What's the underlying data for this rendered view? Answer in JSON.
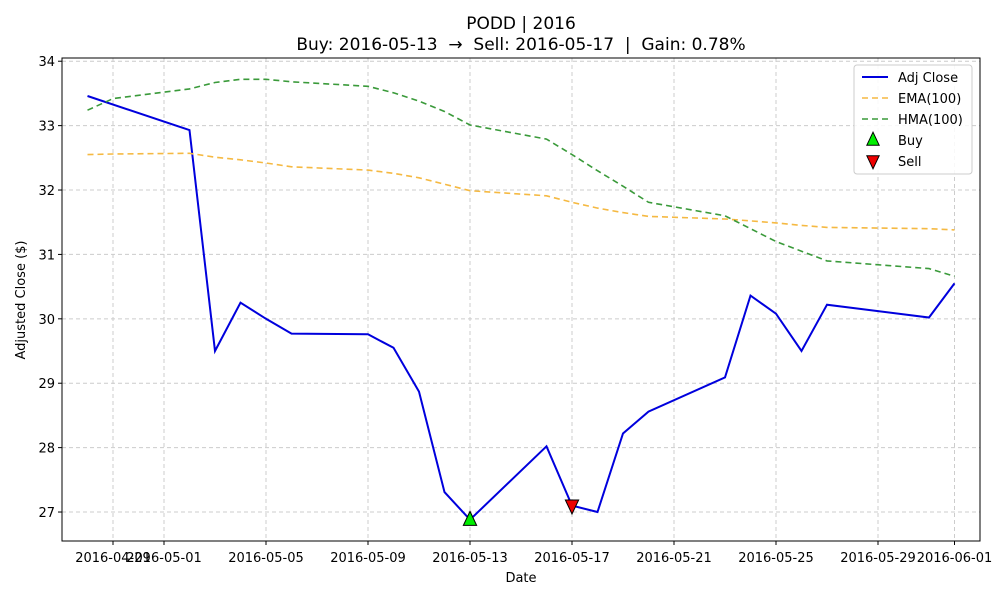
{
  "chart_data": {
    "type": "line",
    "title": "PODD | 2016",
    "subtitle": "Buy: 2016-05-13  →  Sell: 2016-05-17  |  Gain: 0.78%",
    "xlabel": "Date",
    "ylabel": "Adjusted Close ($)",
    "xlim": [
      "2016-04-27",
      "2016-06-02"
    ],
    "ylim": [
      26.55,
      34.05
    ],
    "grid": true,
    "legend_position": "top-right",
    "x_ticks": [
      "2016-04-29",
      "2016-05-01",
      "2016-05-05",
      "2016-05-09",
      "2016-05-13",
      "2016-05-17",
      "2016-05-21",
      "2016-05-25",
      "2016-05-29",
      "2016-06-01"
    ],
    "y_ticks": [
      27,
      28,
      29,
      30,
      31,
      32,
      33,
      34
    ],
    "series": [
      {
        "name": "Adj Close",
        "color": "#0000dd",
        "style": "solid",
        "points": [
          [
            "2016-04-28",
            33.46
          ],
          [
            "2016-05-02",
            32.93
          ],
          [
            "2016-05-03",
            29.5
          ],
          [
            "2016-05-04",
            30.25
          ],
          [
            "2016-05-05",
            30.0
          ],
          [
            "2016-05-06",
            29.77
          ],
          [
            "2016-05-09",
            29.76
          ],
          [
            "2016-05-10",
            29.55
          ],
          [
            "2016-05-11",
            28.87
          ],
          [
            "2016-05-12",
            27.31
          ],
          [
            "2016-05-13",
            26.88
          ],
          [
            "2016-05-16",
            28.02
          ],
          [
            "2016-05-17",
            27.1
          ],
          [
            "2016-05-18",
            27.0
          ],
          [
            "2016-05-19",
            28.22
          ],
          [
            "2016-05-20",
            28.56
          ],
          [
            "2016-05-23",
            29.09
          ],
          [
            "2016-05-24",
            30.36
          ],
          [
            "2016-05-25",
            30.08
          ],
          [
            "2016-05-26",
            29.5
          ],
          [
            "2016-05-27",
            30.22
          ],
          [
            "2016-05-31",
            30.02
          ],
          [
            "2016-06-01",
            30.55
          ]
        ]
      },
      {
        "name": "EMA(100)",
        "color": "#f5b942",
        "style": "dashed",
        "points": [
          [
            "2016-04-28",
            32.55
          ],
          [
            "2016-04-29",
            32.56
          ],
          [
            "2016-05-02",
            32.57
          ],
          [
            "2016-05-03",
            32.51
          ],
          [
            "2016-05-04",
            32.47
          ],
          [
            "2016-05-05",
            32.42
          ],
          [
            "2016-05-06",
            32.36
          ],
          [
            "2016-05-09",
            32.31
          ],
          [
            "2016-05-10",
            32.26
          ],
          [
            "2016-05-11",
            32.19
          ],
          [
            "2016-05-12",
            32.09
          ],
          [
            "2016-05-13",
            31.99
          ],
          [
            "2016-05-16",
            31.91
          ],
          [
            "2016-05-17",
            31.81
          ],
          [
            "2016-05-18",
            31.72
          ],
          [
            "2016-05-19",
            31.65
          ],
          [
            "2016-05-20",
            31.59
          ],
          [
            "2016-05-23",
            31.55
          ],
          [
            "2016-05-24",
            31.52
          ],
          [
            "2016-05-25",
            31.49
          ],
          [
            "2016-05-26",
            31.45
          ],
          [
            "2016-05-27",
            31.42
          ],
          [
            "2016-05-31",
            31.4
          ],
          [
            "2016-06-01",
            31.38
          ]
        ]
      },
      {
        "name": "HMA(100)",
        "color": "#3a9a3a",
        "style": "dashed",
        "points": [
          [
            "2016-04-28",
            33.24
          ],
          [
            "2016-04-29",
            33.42
          ],
          [
            "2016-05-02",
            33.57
          ],
          [
            "2016-05-03",
            33.67
          ],
          [
            "2016-05-04",
            33.72
          ],
          [
            "2016-05-05",
            33.72
          ],
          [
            "2016-05-06",
            33.68
          ],
          [
            "2016-05-09",
            33.61
          ],
          [
            "2016-05-10",
            33.51
          ],
          [
            "2016-05-11",
            33.38
          ],
          [
            "2016-05-12",
            33.22
          ],
          [
            "2016-05-13",
            33.01
          ],
          [
            "2016-05-16",
            32.79
          ],
          [
            "2016-05-17",
            32.55
          ],
          [
            "2016-05-18",
            32.3
          ],
          [
            "2016-05-19",
            32.06
          ],
          [
            "2016-05-20",
            31.81
          ],
          [
            "2016-05-23",
            31.6
          ],
          [
            "2016-05-24",
            31.4
          ],
          [
            "2016-05-25",
            31.2
          ],
          [
            "2016-05-26",
            31.05
          ],
          [
            "2016-05-27",
            30.9
          ],
          [
            "2016-05-31",
            30.78
          ],
          [
            "2016-06-01",
            30.66
          ]
        ]
      }
    ],
    "markers": [
      {
        "name": "Buy",
        "date": "2016-05-13",
        "value": 26.88,
        "shape": "triangle-up",
        "color": "#00ee00"
      },
      {
        "name": "Sell",
        "date": "2016-05-17",
        "value": 27.1,
        "shape": "triangle-down",
        "color": "#ee0000"
      }
    ]
  }
}
